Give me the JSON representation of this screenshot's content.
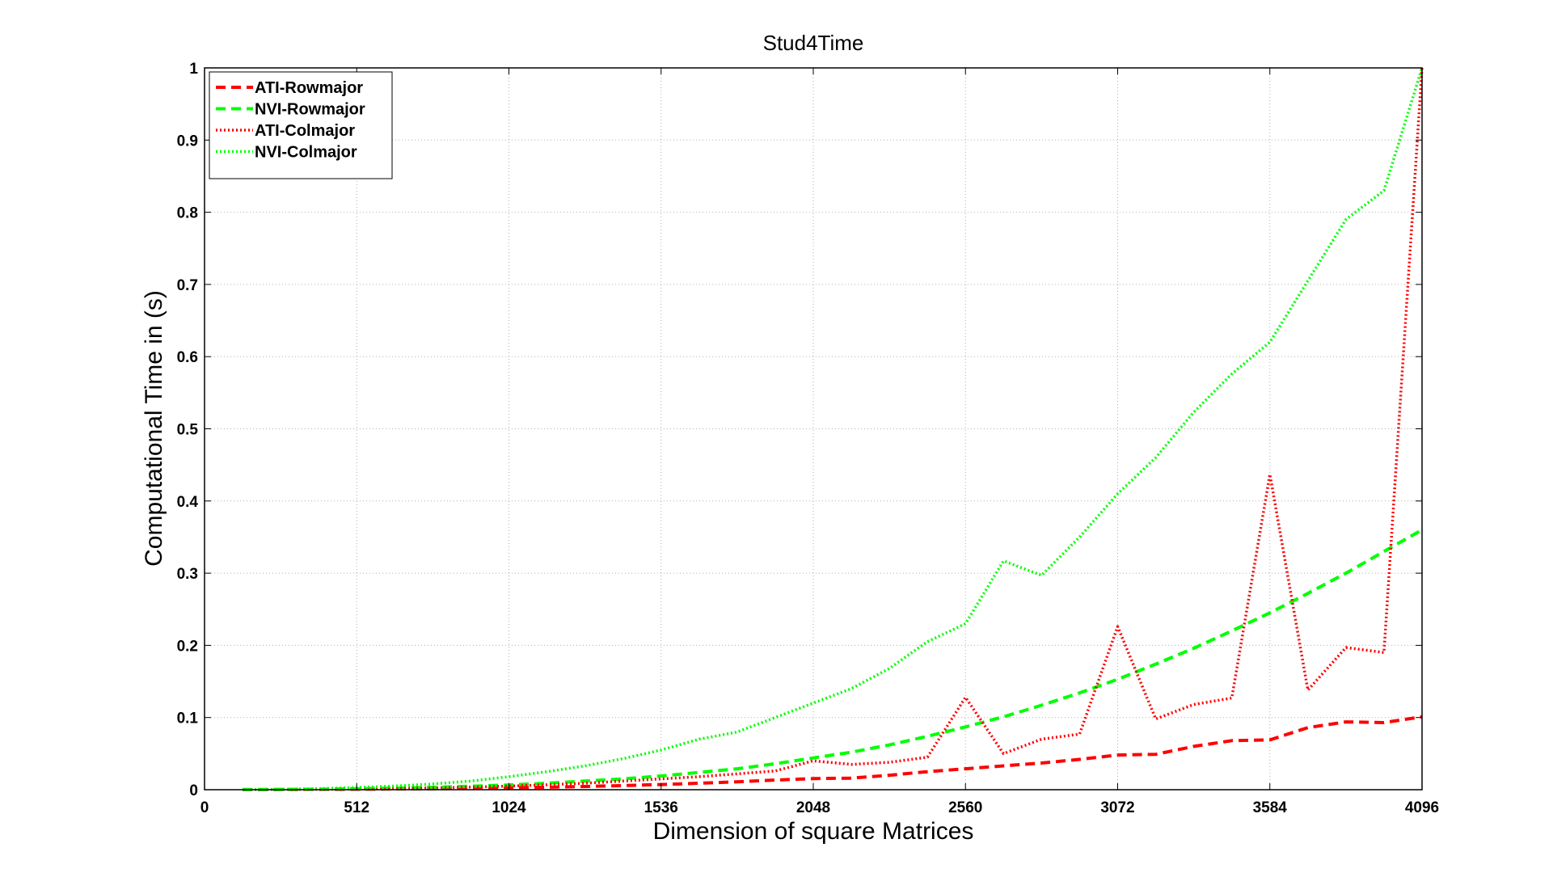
{
  "chart_data": {
    "type": "line",
    "title": "Stud4Time",
    "xlabel": "Dimension of square Matrices",
    "ylabel": "Computational Time in (s)",
    "xlim": [
      0,
      4096
    ],
    "ylim": [
      0,
      1
    ],
    "xticks": [
      0,
      512,
      1024,
      1536,
      2048,
      2560,
      3072,
      3584,
      4096
    ],
    "yticks": [
      0,
      0.1,
      0.2,
      0.3,
      0.4,
      0.5,
      0.6,
      0.7,
      0.8,
      0.9,
      1
    ],
    "ytick_labels": [
      "0",
      "0.1",
      "0.2",
      "0.3",
      "0.4",
      "0.5",
      "0.6",
      "0.7",
      "0.8",
      "0.9",
      "1"
    ],
    "grid": true,
    "legend_position": "top-left",
    "x": [
      128,
      256,
      384,
      512,
      640,
      768,
      896,
      1024,
      1152,
      1280,
      1408,
      1536,
      1664,
      1792,
      1920,
      2048,
      2176,
      2304,
      2432,
      2560,
      2688,
      2816,
      2944,
      3072,
      3200,
      3328,
      3456,
      3584,
      3712,
      3840,
      3968,
      4096
    ],
    "series": [
      {
        "name": "ATI-Rowmajor",
        "color": "#ff0000",
        "style": "dashed",
        "values": [
          0.0001,
          0.0002,
          0.0004,
          0.0007,
          0.0011,
          0.0015,
          0.002,
          0.0027,
          0.0035,
          0.0045,
          0.0057,
          0.0072,
          0.009,
          0.011,
          0.0133,
          0.0155,
          0.016,
          0.02,
          0.025,
          0.029,
          0.033,
          0.037,
          0.042,
          0.048,
          0.049,
          0.06,
          0.068,
          0.069,
          0.086,
          0.094,
          0.093,
          0.101
        ]
      },
      {
        "name": "NVI-Rowmajor",
        "color": "#00ff00",
        "style": "dashed",
        "values": [
          0.0001,
          0.0003,
          0.0007,
          0.0013,
          0.0022,
          0.0033,
          0.0048,
          0.0066,
          0.009,
          0.012,
          0.015,
          0.019,
          0.024,
          0.029,
          0.036,
          0.044,
          0.052,
          0.062,
          0.074,
          0.087,
          0.101,
          0.117,
          0.134,
          0.153,
          0.174,
          0.196,
          0.22,
          0.245,
          0.272,
          0.3,
          0.33,
          0.36
        ]
      },
      {
        "name": "ATI-Colmajor",
        "color": "#ff0000",
        "style": "dotted",
        "values": [
          0.0001,
          0.0003,
          0.0006,
          0.001,
          0.0016,
          0.0025,
          0.0036,
          0.005,
          0.0068,
          0.009,
          0.012,
          0.015,
          0.018,
          0.022,
          0.026,
          0.04,
          0.035,
          0.038,
          0.045,
          0.128,
          0.05,
          0.07,
          0.077,
          0.226,
          0.098,
          0.118,
          0.127,
          0.437,
          0.138,
          0.197,
          0.19,
          1.0
        ]
      },
      {
        "name": "NVI-Colmajor",
        "color": "#00ff00",
        "style": "dotted",
        "values": [
          0.0002,
          0.0006,
          0.0015,
          0.003,
          0.005,
          0.008,
          0.012,
          0.018,
          0.025,
          0.033,
          0.043,
          0.055,
          0.07,
          0.08,
          0.1,
          0.12,
          0.14,
          0.168,
          0.205,
          0.23,
          0.317,
          0.297,
          0.35,
          0.41,
          0.46,
          0.523,
          0.576,
          0.62,
          0.705,
          0.79,
          0.83,
          1.0
        ]
      }
    ]
  }
}
